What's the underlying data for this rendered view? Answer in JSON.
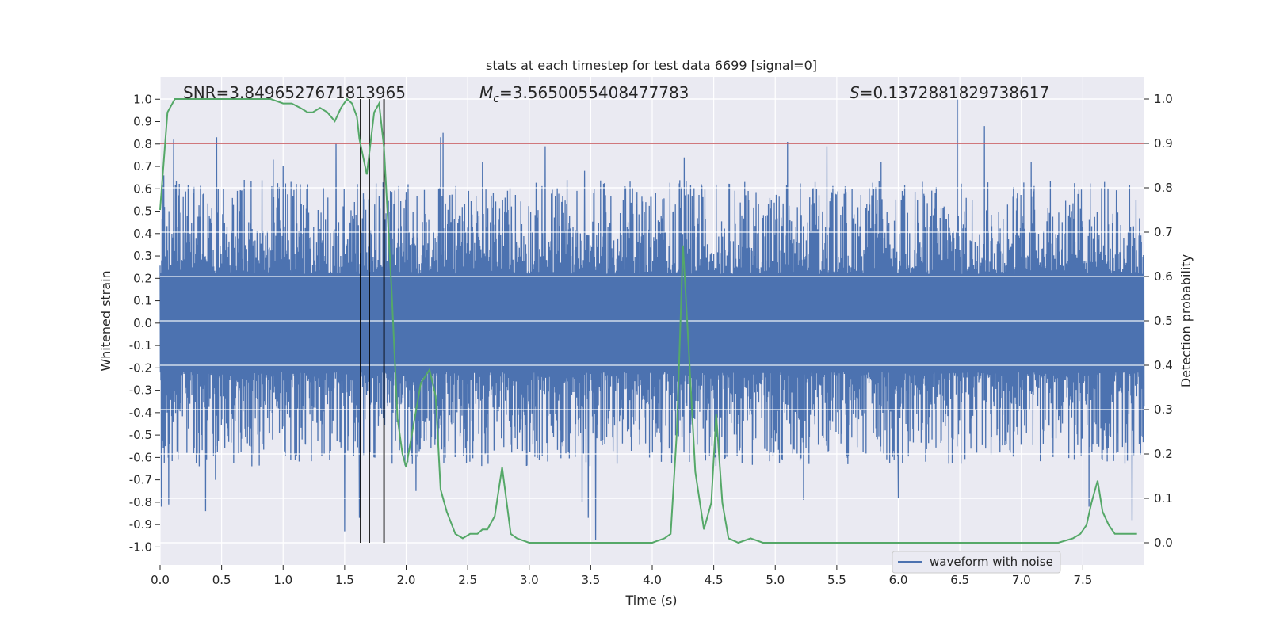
{
  "chart_data": {
    "type": "line",
    "title": "stats at each timestep for test data 6699 [signal=0]",
    "xlabel": "Time (s)",
    "ylabel_left": "Whitened strain",
    "ylabel_right": "Detection probability",
    "xlim": [
      0.0,
      8.0
    ],
    "ylim_left": [
      -1.08,
      1.1
    ],
    "ylim_right": [
      -0.05,
      1.05
    ],
    "x_ticks": [
      "0.0",
      "0.5",
      "1.0",
      "1.5",
      "2.0",
      "2.5",
      "3.0",
      "3.5",
      "4.0",
      "4.5",
      "5.0",
      "5.5",
      "6.0",
      "6.5",
      "7.0",
      "7.5"
    ],
    "y_left_ticks": [
      "-1.0",
      "-0.9",
      "-0.8",
      "-0.7",
      "-0.6",
      "-0.5",
      "-0.4",
      "-0.3",
      "-0.2",
      "-0.1",
      "0.0",
      "0.1",
      "0.2",
      "0.3",
      "0.4",
      "0.5",
      "0.6",
      "0.7",
      "0.8",
      "0.9",
      "1.0"
    ],
    "y_right_ticks": [
      "0.0",
      "0.1",
      "0.2",
      "0.3",
      "0.4",
      "0.5",
      "0.6",
      "0.7",
      "0.8",
      "0.9",
      "1.0"
    ],
    "annotations": {
      "snr": "SNR=3.8496527671813965",
      "mc_symbol": "M",
      "mc_sub": "c",
      "mc_value": "=3.5650055408477783",
      "s_symbol": "S",
      "s_value": "=0.1372881829738617"
    },
    "threshold_line": {
      "axis": "right",
      "value": 0.9,
      "color": "#c44e52"
    },
    "vertical_markers": [
      1.63,
      1.7,
      1.82
    ],
    "legend": [
      {
        "name": "waveform with noise",
        "color": "#4c72b0"
      }
    ],
    "legend_position": "lower-right",
    "series": [
      {
        "name": "waveform with noise",
        "axis": "left",
        "color": "#4c72b0",
        "style": "dense noise waveform",
        "upper_peaks": [
          {
            "x": 0.03,
            "y": 0.66
          },
          {
            "x": 0.11,
            "y": 0.82
          },
          {
            "x": 0.46,
            "y": 0.83
          },
          {
            "x": 0.92,
            "y": 0.73
          },
          {
            "x": 1.0,
            "y": 0.7
          },
          {
            "x": 1.43,
            "y": 0.8
          },
          {
            "x": 2.28,
            "y": 0.83
          },
          {
            "x": 2.3,
            "y": 0.85
          },
          {
            "x": 2.62,
            "y": 0.72
          },
          {
            "x": 3.13,
            "y": 0.79
          },
          {
            "x": 3.45,
            "y": 0.68
          },
          {
            "x": 4.26,
            "y": 0.74
          },
          {
            "x": 5.1,
            "y": 0.81
          },
          {
            "x": 5.42,
            "y": 0.79
          },
          {
            "x": 5.86,
            "y": 0.72
          },
          {
            "x": 6.48,
            "y": 1.0
          },
          {
            "x": 6.7,
            "y": 0.88
          },
          {
            "x": 7.08,
            "y": 0.72
          }
        ],
        "lower_peaks": [
          {
            "x": 0.01,
            "y": -0.82
          },
          {
            "x": 0.07,
            "y": -0.81
          },
          {
            "x": 0.37,
            "y": -0.84
          },
          {
            "x": 0.45,
            "y": -0.7
          },
          {
            "x": 1.5,
            "y": -0.93
          },
          {
            "x": 1.62,
            "y": -0.87
          },
          {
            "x": 2.08,
            "y": -0.75
          },
          {
            "x": 3.43,
            "y": -0.8
          },
          {
            "x": 3.48,
            "y": -0.87
          },
          {
            "x": 3.54,
            "y": -0.97
          },
          {
            "x": 5.23,
            "y": -0.79
          },
          {
            "x": 6.0,
            "y": -0.78
          },
          {
            "x": 7.55,
            "y": -0.82
          },
          {
            "x": 7.9,
            "y": -0.88
          }
        ]
      },
      {
        "name": "detection probability",
        "axis": "right",
        "color": "#55a868",
        "x": [
          0.0,
          0.06,
          0.12,
          0.2,
          0.3,
          0.5,
          0.7,
          0.9,
          1.0,
          1.07,
          1.14,
          1.2,
          1.24,
          1.3,
          1.36,
          1.42,
          1.47,
          1.52,
          1.56,
          1.6,
          1.62,
          1.68,
          1.74,
          1.78,
          1.82,
          1.88,
          1.93,
          1.97,
          2.0,
          2.05,
          2.12,
          2.19,
          2.24,
          2.28,
          2.33,
          2.4,
          2.46,
          2.52,
          2.58,
          2.62,
          2.66,
          2.72,
          2.78,
          2.85,
          2.9,
          3.0,
          3.2,
          3.5,
          3.8,
          4.0,
          4.1,
          4.15,
          4.2,
          4.25,
          4.3,
          4.35,
          4.42,
          4.48,
          4.52,
          4.57,
          4.62,
          4.7,
          4.8,
          4.9,
          5.0,
          5.2,
          5.4,
          5.6,
          5.8,
          6.0,
          6.2,
          6.5,
          7.0,
          7.3,
          7.42,
          7.48,
          7.53,
          7.57,
          7.62,
          7.66,
          7.71,
          7.76,
          7.82,
          7.88,
          7.94
        ],
        "values": [
          0.75,
          0.97,
          1.0,
          1.0,
          1.0,
          1.0,
          1.0,
          1.0,
          0.99,
          0.99,
          0.98,
          0.97,
          0.97,
          0.98,
          0.97,
          0.95,
          0.98,
          1.0,
          0.99,
          0.96,
          0.91,
          0.83,
          0.97,
          0.99,
          0.89,
          0.58,
          0.28,
          0.2,
          0.17,
          0.25,
          0.36,
          0.39,
          0.33,
          0.12,
          0.07,
          0.02,
          0.01,
          0.02,
          0.02,
          0.03,
          0.03,
          0.06,
          0.17,
          0.02,
          0.01,
          0.0,
          0.0,
          0.0,
          0.0,
          0.0,
          0.01,
          0.02,
          0.25,
          0.67,
          0.42,
          0.16,
          0.03,
          0.09,
          0.29,
          0.09,
          0.01,
          0.0,
          0.01,
          0.0,
          0.0,
          0.0,
          0.0,
          0.0,
          0.0,
          0.0,
          0.0,
          0.0,
          0.0,
          0.0,
          0.01,
          0.02,
          0.04,
          0.09,
          0.14,
          0.07,
          0.04,
          0.02,
          0.02,
          0.02,
          0.02
        ]
      }
    ]
  }
}
